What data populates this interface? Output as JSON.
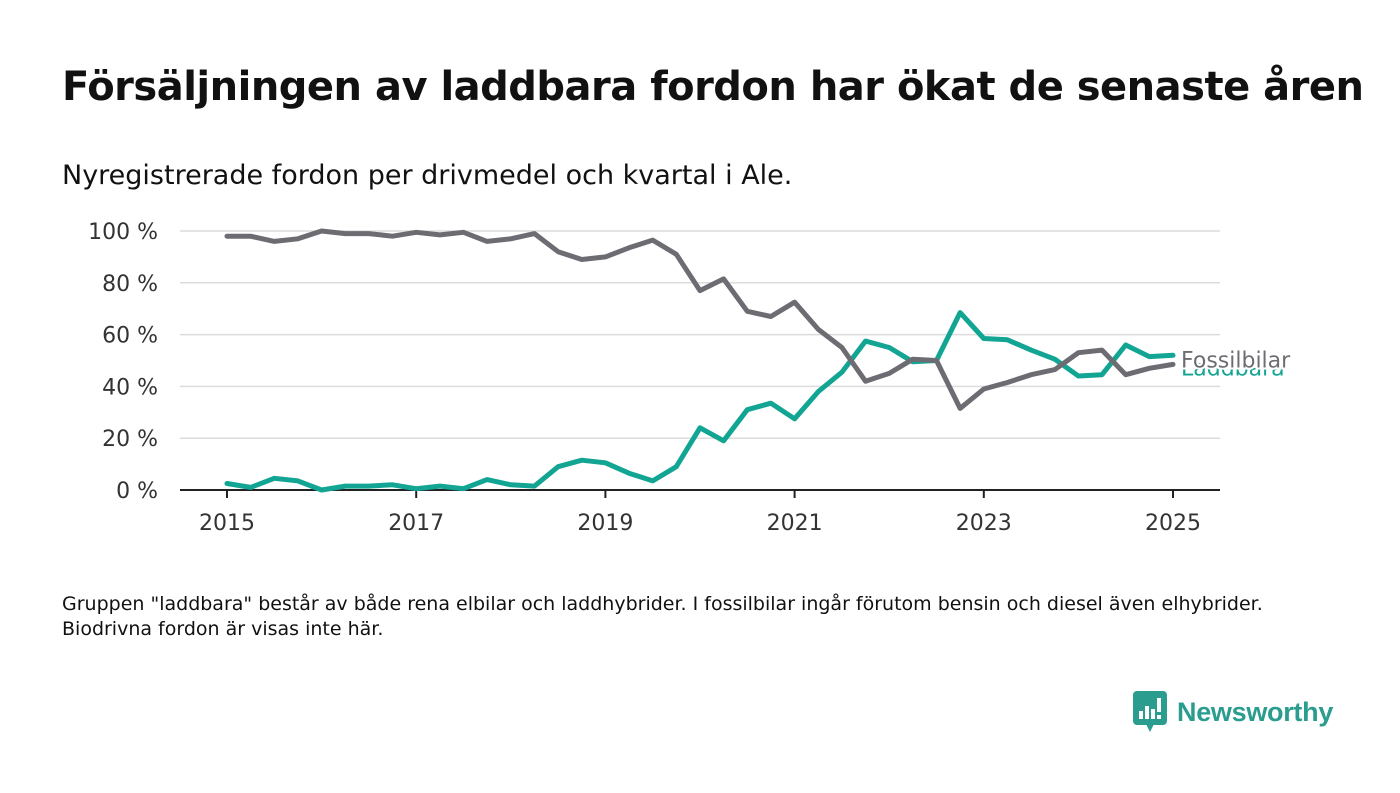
{
  "header": {
    "title": "Försäljningen av laddbara fordon har ökat de senaste åren",
    "subtitle": "Nyregistrerade fordon per drivmedel och kvartal i Ale."
  },
  "footnote": "Gruppen \"laddbara\" består av både rena elbilar och laddhybrider. I fossilbilar ingår förutom bensin och diesel även elhybrider. Biodrivna fordon är visas inte här.",
  "brand": {
    "name": "Newsworthy",
    "icon": "newsworthy-logo-icon",
    "color": "#2a9d8f"
  },
  "chart_data": {
    "type": "line",
    "x_start": "2015 Q1",
    "x_step": "quarter",
    "xticks": [
      "2015",
      "2017",
      "2019",
      "2021",
      "2023",
      "2025"
    ],
    "yticks": [
      "0 %",
      "20 %",
      "40 %",
      "60 %",
      "80 %",
      "100 %"
    ],
    "ylim": [
      0,
      100
    ],
    "grid": true,
    "legend": "line-end labels",
    "series": [
      {
        "name": "Fossilbilar",
        "color": "#6e6c73",
        "values": [
          98,
          98,
          96,
          97,
          100,
          99,
          99,
          98,
          99.5,
          98.5,
          99.5,
          96,
          97,
          99,
          92,
          89,
          90,
          93.5,
          96.5,
          91,
          77,
          81.5,
          69,
          67,
          72.5,
          62,
          55,
          42,
          45,
          50.5,
          50,
          31.5,
          39,
          41.5,
          44.5,
          46.5,
          53,
          54,
          44.5,
          47,
          48.5
        ]
      },
      {
        "name": "Laddbara",
        "color": "#13a593",
        "values": [
          2.5,
          1,
          4.5,
          3.5,
          0,
          1.5,
          1.5,
          2,
          0.5,
          1.5,
          0.5,
          4,
          2,
          1.5,
          9,
          11.5,
          10.5,
          6.5,
          3.5,
          9,
          24,
          19,
          31,
          33.5,
          27.5,
          38,
          45.5,
          57.5,
          55,
          49.5,
          50,
          68.5,
          58.5,
          58,
          54,
          50.5,
          44,
          44.5,
          56,
          51.5,
          52
        ]
      }
    ]
  }
}
